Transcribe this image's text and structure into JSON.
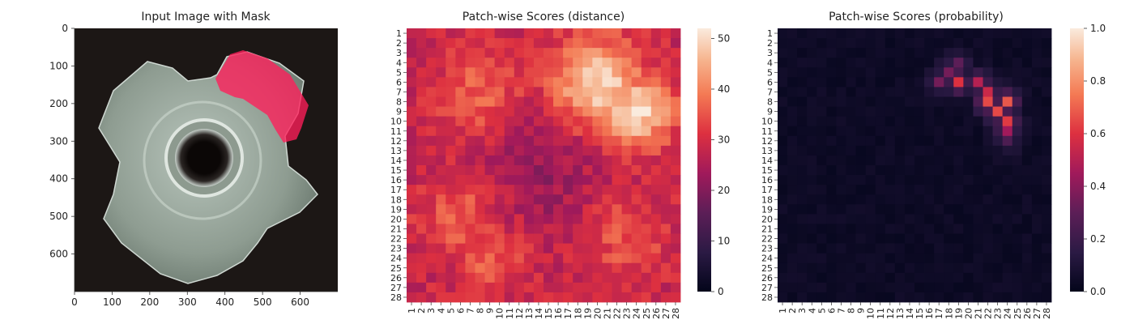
{
  "figure": {
    "panels": [
      {
        "title": "Input Image with Mask",
        "x_ticks": [
          "0",
          "100",
          "200",
          "300",
          "400",
          "500",
          "600"
        ],
        "y_ticks": [
          "0",
          "100",
          "200",
          "300",
          "400",
          "500",
          "600"
        ]
      },
      {
        "title": "Patch-wise Scores (distance)",
        "colorbar_ticks": [
          "0",
          "10",
          "20",
          "30",
          "40",
          "50"
        ]
      },
      {
        "title": "Patch-wise Scores (probability)",
        "colorbar_ticks": [
          "0.0",
          "0.2",
          "0.4",
          "0.6",
          "0.8",
          "1.0"
        ]
      }
    ],
    "colors": {
      "mask": "#ff1e5a",
      "background": "#1c1715",
      "nut": "#9aa89d"
    }
  },
  "chart_data": [
    {
      "type": "image",
      "title": "Input Image with Mask",
      "xlim": [
        0,
        700
      ],
      "ylim": [
        700,
        0
      ],
      "x_ticks": [
        0,
        100,
        200,
        300,
        400,
        500,
        600
      ],
      "y_ticks": [
        0,
        100,
        200,
        300,
        400,
        500,
        600
      ],
      "content": "four-prong nut with highlighted defect region on the upper-right prong"
    },
    {
      "type": "heatmap",
      "title": "Patch-wise Scores (distance)",
      "rows": 28,
      "cols": 28,
      "x_tick_labels": [
        "1",
        "2",
        "3",
        "4",
        "5",
        "6",
        "7",
        "8",
        "9",
        "10",
        "11",
        "12",
        "13",
        "14",
        "15",
        "16",
        "17",
        "18",
        "19",
        "20",
        "21",
        "22",
        "23",
        "24",
        "25",
        "26",
        "27",
        "28"
      ],
      "y_tick_labels": [
        "1",
        "2",
        "3",
        "4",
        "5",
        "6",
        "7",
        "8",
        "9",
        "10",
        "11",
        "12",
        "13",
        "14",
        "15",
        "16",
        "17",
        "18",
        "19",
        "20",
        "21",
        "22",
        "23",
        "24",
        "25",
        "26",
        "27",
        "28"
      ],
      "colorbar": {
        "min": 0,
        "max": 52,
        "ticks": [
          0,
          10,
          20,
          30,
          40,
          50
        ],
        "colormap": "rocket"
      },
      "hotspots": [
        {
          "row": 6,
          "col": 20,
          "value": 50
        },
        {
          "row": 9,
          "col": 24,
          "value": 51
        },
        {
          "row": 7,
          "col": 8,
          "value": 37
        },
        {
          "row": 20,
          "col": 6,
          "value": 37
        },
        {
          "row": 24,
          "col": 9,
          "value": 36
        },
        {
          "row": 22,
          "col": 23,
          "value": 35
        }
      ],
      "background_value": 28
    },
    {
      "type": "heatmap",
      "title": "Patch-wise Scores (probability)",
      "rows": 28,
      "cols": 28,
      "x_tick_labels": [
        "1",
        "2",
        "3",
        "4",
        "5",
        "6",
        "7",
        "8",
        "9",
        "10",
        "11",
        "12",
        "13",
        "14",
        "15",
        "16",
        "17",
        "18",
        "19",
        "20",
        "21",
        "22",
        "23",
        "24",
        "25",
        "26",
        "27",
        "28"
      ],
      "y_tick_labels": [
        "1",
        "2",
        "3",
        "4",
        "5",
        "6",
        "7",
        "8",
        "9",
        "10",
        "11",
        "12",
        "13",
        "14",
        "15",
        "16",
        "17",
        "18",
        "19",
        "20",
        "21",
        "22",
        "23",
        "24",
        "25",
        "26",
        "27",
        "28"
      ],
      "colorbar": {
        "min": 0,
        "max": 1,
        "ticks": [
          0.0,
          0.2,
          0.4,
          0.6,
          0.8,
          1.0
        ],
        "colormap": "rocket"
      },
      "nonzero_cells": [
        {
          "row": 4,
          "col": 19,
          "value": 0.3
        },
        {
          "row": 5,
          "col": 18,
          "value": 0.35
        },
        {
          "row": 6,
          "col": 17,
          "value": 0.35
        },
        {
          "row": 6,
          "col": 19,
          "value": 0.6
        },
        {
          "row": 6,
          "col": 21,
          "value": 0.5
        },
        {
          "row": 7,
          "col": 22,
          "value": 0.55
        },
        {
          "row": 8,
          "col": 22,
          "value": 0.65
        },
        {
          "row": 8,
          "col": 24,
          "value": 0.68
        },
        {
          "row": 9,
          "col": 23,
          "value": 0.65
        },
        {
          "row": 10,
          "col": 24,
          "value": 0.62
        },
        {
          "row": 11,
          "col": 24,
          "value": 0.45
        },
        {
          "row": 12,
          "col": 24,
          "value": 0.25
        }
      ],
      "background_value": 0.02
    }
  ]
}
